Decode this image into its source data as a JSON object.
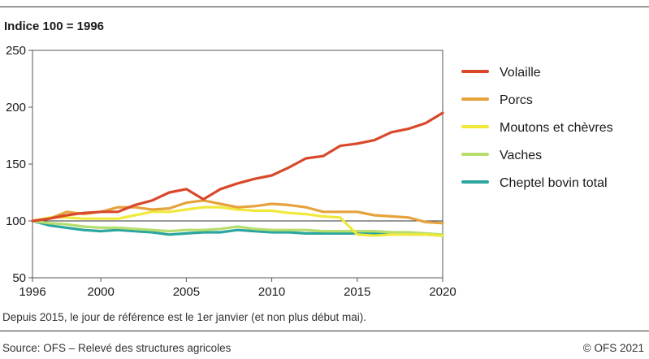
{
  "header": {
    "subtitle": "Indice 100 = 1996"
  },
  "footer": {
    "note": "Depuis 2015, le jour de référence est le 1er janvier (et non plus début mai).",
    "source": "Source: OFS – Relevé des structures agricoles",
    "copyright": "© OFS 2021"
  },
  "chart_data": {
    "type": "line",
    "title": "",
    "subtitle": "Indice 100 = 1996",
    "xlabel": "",
    "ylabel": "",
    "xlim": [
      1996,
      2020
    ],
    "ylim": [
      50,
      250
    ],
    "x_ticks": [
      1996,
      2000,
      2005,
      2010,
      2015,
      2020
    ],
    "y_ticks": [
      50,
      100,
      150,
      200,
      250
    ],
    "grid": false,
    "legend_position": "right",
    "x": [
      1996,
      1997,
      1998,
      1999,
      2000,
      2001,
      2002,
      2003,
      2004,
      2005,
      2006,
      2007,
      2008,
      2009,
      2010,
      2011,
      2012,
      2013,
      2014,
      2015,
      2016,
      2017,
      2018,
      2019,
      2020
    ],
    "series": [
      {
        "name": "Volaille",
        "color": "#d9482b",
        "values": [
          100,
          102,
          105,
          107,
          108,
          108,
          114,
          118,
          125,
          128,
          119,
          128,
          133,
          137,
          140,
          147,
          155,
          157,
          166,
          168,
          171,
          178,
          181,
          186,
          195
        ]
      },
      {
        "name": "Porcs",
        "color": "#e6a23c",
        "values": [
          100,
          102,
          108,
          106,
          108,
          112,
          112,
          110,
          111,
          116,
          118,
          115,
          112,
          113,
          115,
          114,
          112,
          108,
          108,
          108,
          105,
          104,
          103,
          99,
          98
        ]
      },
      {
        "name": "Moutons et chèvres",
        "color": "#f0e93a",
        "values": [
          100,
          103,
          103,
          102,
          102,
          102,
          105,
          108,
          108,
          110,
          112,
          112,
          110,
          109,
          109,
          107,
          106,
          104,
          103,
          88,
          87,
          88,
          88,
          88,
          87
        ]
      },
      {
        "name": "Vaches",
        "color": "#b6de6e",
        "values": [
          100,
          98,
          97,
          95,
          94,
          94,
          93,
          92,
          91,
          92,
          92,
          93,
          95,
          93,
          92,
          92,
          92,
          91,
          91,
          91,
          91,
          90,
          90,
          89,
          88
        ]
      },
      {
        "name": "Cheptel bovin total",
        "color": "#2aa5a0",
        "values": [
          100,
          96,
          94,
          92,
          91,
          92,
          91,
          90,
          88,
          89,
          90,
          90,
          92,
          91,
          90,
          90,
          89,
          89,
          89,
          89,
          89,
          89,
          88,
          88,
          87
        ]
      }
    ]
  }
}
